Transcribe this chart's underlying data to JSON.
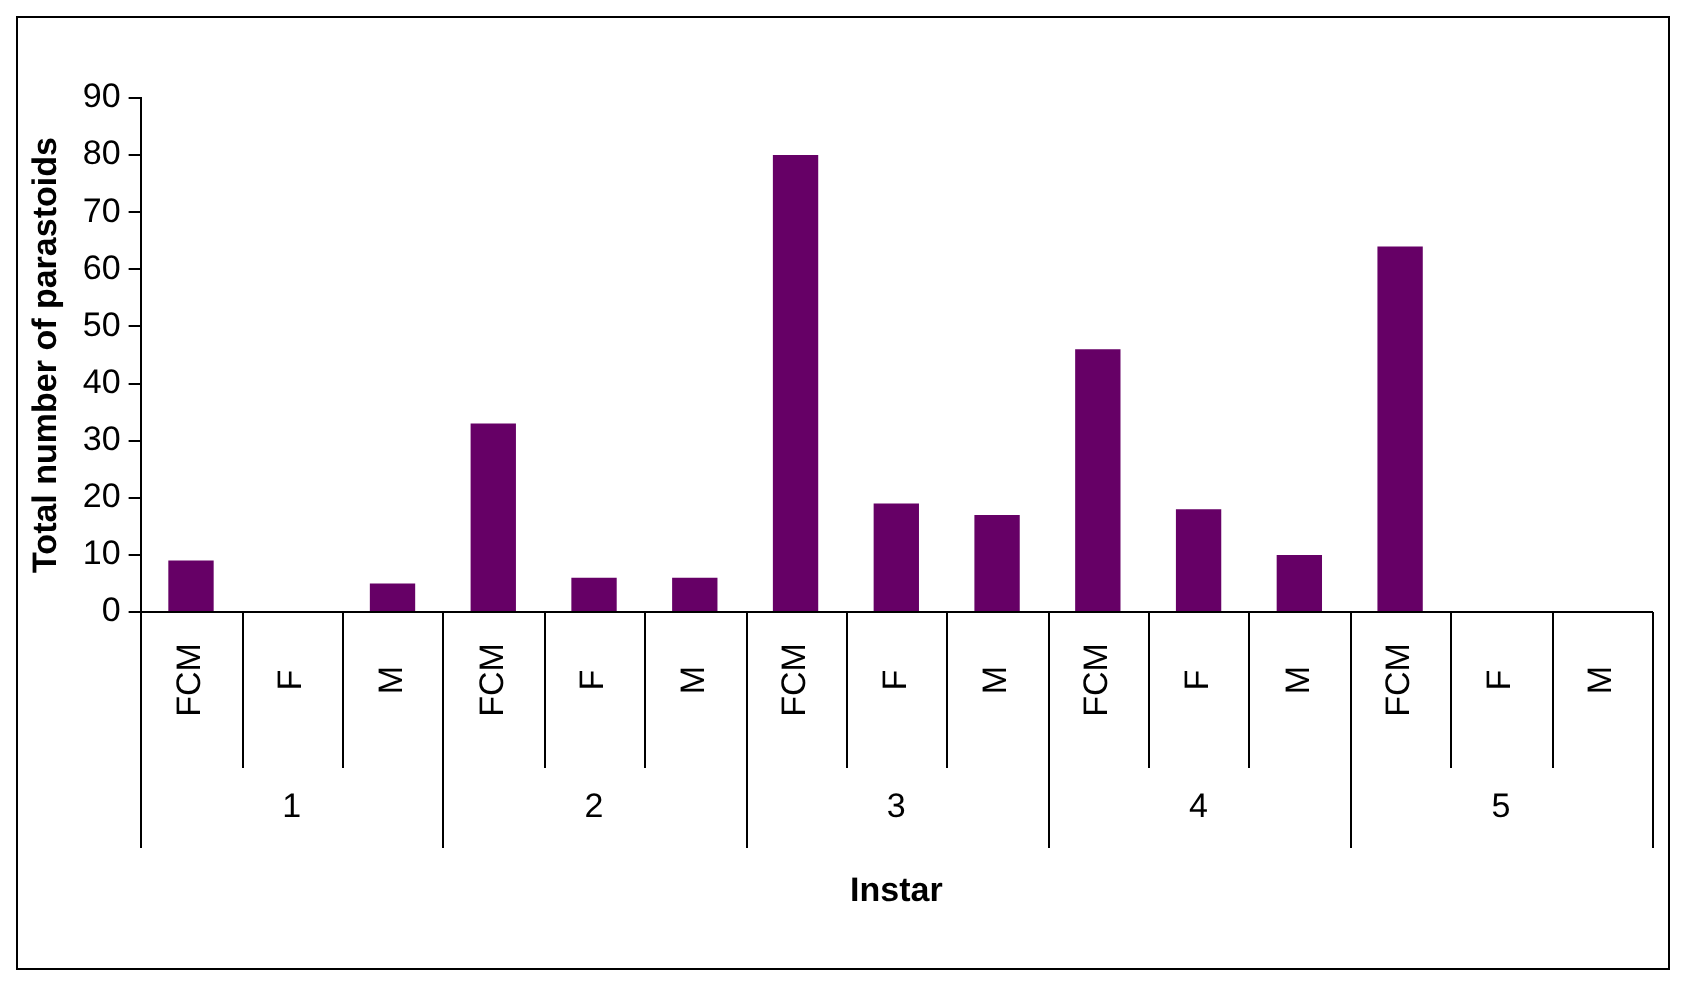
{
  "chart_data": {
    "type": "bar",
    "xlabel": "Instar",
    "ylabel": "Total number of parastoids",
    "categories": [
      "FCM",
      "F",
      "M",
      "FCM",
      "F",
      "M",
      "FCM",
      "F",
      "M",
      "FCM",
      "F",
      "M",
      "FCM",
      "F",
      "M"
    ],
    "values": [
      9,
      0,
      5,
      33,
      6,
      6,
      80,
      19,
      17,
      46,
      18,
      10,
      64,
      0,
      0
    ],
    "color": "#660066",
    "annotations": [
      "1",
      "2",
      "3",
      "4",
      "5"
    ],
    "ylim": [
      0,
      90
    ],
    "yticks": [
      0,
      10,
      20,
      30,
      40,
      50,
      60,
      70,
      80,
      90
    ],
    "grid": false,
    "legend": false
  }
}
